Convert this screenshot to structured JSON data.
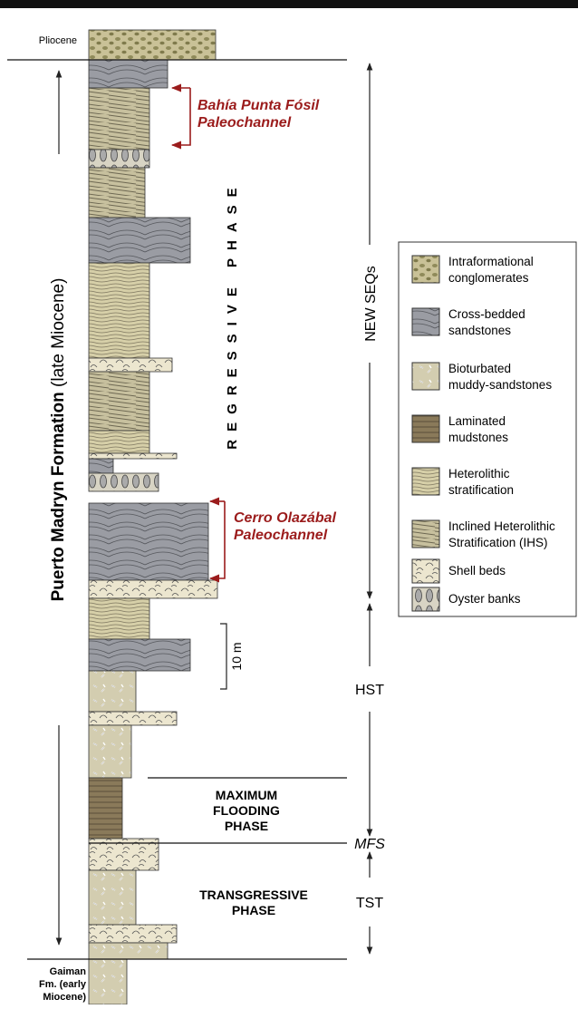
{
  "header": {
    "pliocene": "Pliocene",
    "gaiman": [
      "Gaiman",
      "Fm. (early",
      "Miocene)"
    ]
  },
  "formation": {
    "name": "Puerto Madryn Formation",
    "age": "(late Miocene)"
  },
  "phases": {
    "regressive": "REGRESSIVE PHASE",
    "maximum_flooding": [
      "MAXIMUM",
      "FLOODING",
      "PHASE"
    ],
    "transgressive": [
      "TRANSGRESSIVE",
      "PHASE"
    ]
  },
  "paleochannels": [
    [
      "Bahía Punta Fósil",
      "Paleochannel"
    ],
    [
      "Cerro Olazábal",
      "Paleochannel"
    ]
  ],
  "sequences": {
    "new": "NEW SEQs",
    "hst": "HST",
    "tst": "TST",
    "mfs": "MFS"
  },
  "scale": "10 m",
  "legend": [
    [
      "Intraformational",
      "conglomerates"
    ],
    [
      "Cross-bedded",
      "sandstones"
    ],
    [
      "Bioturbated",
      "muddy-sandstones"
    ],
    [
      "Laminated",
      "mudstones"
    ],
    [
      "Heterolithic",
      "stratification"
    ],
    [
      "Inclined Heterolithic",
      "Stratification (IHS)"
    ],
    [
      "Shell beds"
    ],
    [
      "Oyster banks"
    ]
  ]
}
